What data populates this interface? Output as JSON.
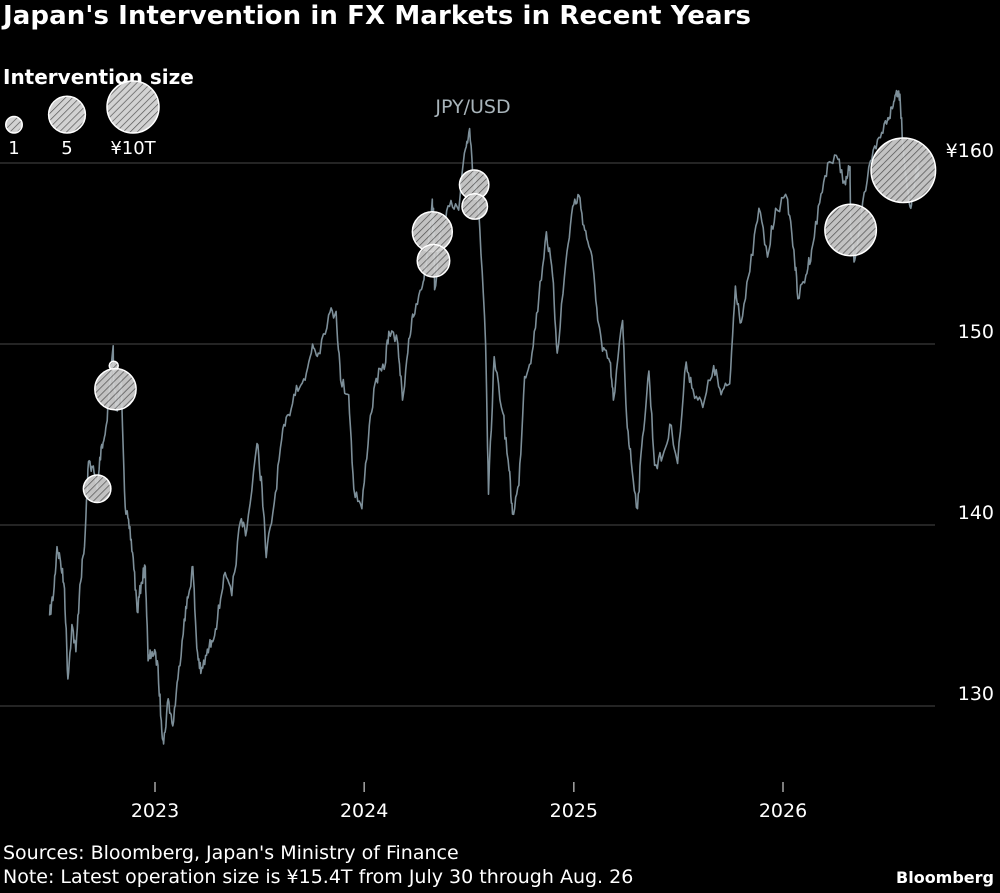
{
  "title": "Japan's Intervention in FX Markets in Recent Years",
  "legend": {
    "title": "Intervention size",
    "items": [
      {
        "label": "1",
        "size": 1
      },
      {
        "label": "5",
        "size": 5
      },
      {
        "label": "¥10T",
        "size": 10
      }
    ]
  },
  "colors": {
    "background": "#000000",
    "line": "#7d8f99",
    "bubble_fill": "#d9d9d9",
    "bubble_stroke": "#ffffff",
    "grid": "#3a3a3a",
    "text": "#ffffff"
  },
  "chart_data": {
    "type": "line",
    "series": [
      {
        "name": "JPY/USD",
        "points": [
          [
            "2022-07-01",
            135.0
          ],
          [
            "2022-07-08",
            136.2
          ],
          [
            "2022-07-14",
            138.8
          ],
          [
            "2022-07-20",
            138.0
          ],
          [
            "2022-07-27",
            136.5
          ],
          [
            "2022-08-02",
            131.5
          ],
          [
            "2022-08-09",
            134.5
          ],
          [
            "2022-08-16",
            133.0
          ],
          [
            "2022-08-23",
            136.7
          ],
          [
            "2022-08-31",
            138.8
          ],
          [
            "2022-09-07",
            143.5
          ],
          [
            "2022-09-14",
            143.2
          ],
          [
            "2022-09-22",
            142.0
          ],
          [
            "2022-09-29",
            144.3
          ],
          [
            "2022-10-06",
            145.0
          ],
          [
            "2022-10-13",
            147.2
          ],
          [
            "2022-10-20",
            149.9
          ],
          [
            "2022-10-21",
            147.6
          ],
          [
            "2022-10-27",
            146.3
          ],
          [
            "2022-11-03",
            148.1
          ],
          [
            "2022-11-10",
            141.0
          ],
          [
            "2022-11-17",
            139.8
          ],
          [
            "2022-11-24",
            138.2
          ],
          [
            "2022-12-01",
            135.2
          ],
          [
            "2022-12-08",
            136.8
          ],
          [
            "2022-12-15",
            137.7
          ],
          [
            "2022-12-20",
            132.5
          ],
          [
            "2022-12-27",
            133.0
          ],
          [
            "2023-01-05",
            132.5
          ],
          [
            "2023-01-12",
            129.2
          ],
          [
            "2023-01-16",
            127.9
          ],
          [
            "2023-01-24",
            130.4
          ],
          [
            "2023-02-01",
            128.9
          ],
          [
            "2023-02-10",
            131.5
          ],
          [
            "2023-02-21",
            134.8
          ],
          [
            "2023-03-01",
            136.2
          ],
          [
            "2023-03-08",
            137.7
          ],
          [
            "2023-03-15",
            133.2
          ],
          [
            "2023-03-22",
            131.8
          ],
          [
            "2023-04-01",
            132.8
          ],
          [
            "2023-04-10",
            133.6
          ],
          [
            "2023-04-20",
            134.8
          ],
          [
            "2023-05-01",
            137.2
          ],
          [
            "2023-05-15",
            136.1
          ],
          [
            "2023-05-30",
            140.2
          ],
          [
            "2023-06-10",
            139.7
          ],
          [
            "2023-06-28",
            144.5
          ],
          [
            "2023-07-07",
            142.0
          ],
          [
            "2023-07-14",
            138.2
          ],
          [
            "2023-07-28",
            141.2
          ],
          [
            "2023-08-10",
            144.7
          ],
          [
            "2023-08-22",
            146.1
          ],
          [
            "2023-09-05",
            147.7
          ],
          [
            "2023-09-20",
            148.0
          ],
          [
            "2023-10-03",
            150.0
          ],
          [
            "2023-10-13",
            149.5
          ],
          [
            "2023-10-31",
            151.6
          ],
          [
            "2023-11-13",
            151.8
          ],
          [
            "2023-11-21",
            148.0
          ],
          [
            "2023-12-05",
            147.2
          ],
          [
            "2023-12-14",
            142.0
          ],
          [
            "2023-12-28",
            140.9
          ],
          [
            "2024-01-10",
            145.5
          ],
          [
            "2024-01-22",
            148.1
          ],
          [
            "2024-02-05",
            148.6
          ],
          [
            "2024-02-13",
            150.7
          ],
          [
            "2024-02-29",
            150.0
          ],
          [
            "2024-03-08",
            146.9
          ],
          [
            "2024-03-19",
            150.3
          ],
          [
            "2024-03-27",
            151.5
          ],
          [
            "2024-04-10",
            153.0
          ],
          [
            "2024-04-19",
            154.6
          ],
          [
            "2024-04-29",
            158.0
          ],
          [
            "2024-04-30",
            156.0
          ],
          [
            "2024-05-01",
            157.5
          ],
          [
            "2024-05-03",
            153.0
          ],
          [
            "2024-05-14",
            156.4
          ],
          [
            "2024-05-29",
            157.6
          ],
          [
            "2024-06-14",
            157.4
          ],
          [
            "2024-06-26",
            160.8
          ],
          [
            "2024-07-03",
            161.9
          ],
          [
            "2024-07-11",
            158.8
          ],
          [
            "2024-07-12",
            159.3
          ],
          [
            "2024-07-19",
            157.4
          ],
          [
            "2024-07-31",
            150.0
          ],
          [
            "2024-08-05",
            141.7
          ],
          [
            "2024-08-15",
            149.3
          ],
          [
            "2024-08-30",
            146.2
          ],
          [
            "2024-09-10",
            143.0
          ],
          [
            "2024-09-16",
            140.6
          ],
          [
            "2024-09-27",
            142.2
          ],
          [
            "2024-10-07",
            148.2
          ],
          [
            "2024-10-20",
            149.5
          ],
          [
            "2024-11-01",
            152.6
          ],
          [
            "2024-11-14",
            156.2
          ],
          [
            "2024-11-25",
            153.7
          ],
          [
            "2024-12-03",
            149.5
          ],
          [
            "2024-12-18",
            154.5
          ],
          [
            "2024-12-30",
            157.6
          ],
          [
            "2025-01-10",
            158.2
          ],
          [
            "2025-01-20",
            156.3
          ],
          [
            "2025-01-31",
            155.1
          ],
          [
            "2025-02-10",
            152.0
          ],
          [
            "2025-02-20",
            149.6
          ],
          [
            "2025-03-05",
            149.0
          ],
          [
            "2025-03-11",
            146.9
          ],
          [
            "2025-03-27",
            151.3
          ],
          [
            "2025-04-03",
            146.0
          ],
          [
            "2025-04-11",
            143.5
          ],
          [
            "2025-04-22",
            140.9
          ],
          [
            "2025-05-01",
            144.9
          ],
          [
            "2025-05-12",
            148.5
          ],
          [
            "2025-05-22",
            143.3
          ],
          [
            "2025-06-05",
            143.8
          ],
          [
            "2025-06-20",
            145.5
          ],
          [
            "2025-07-01",
            143.4
          ],
          [
            "2025-07-16",
            149.0
          ],
          [
            "2025-07-28",
            147.5
          ],
          [
            "2025-08-14",
            146.5
          ],
          [
            "2025-09-02",
            148.8
          ],
          [
            "2025-09-15",
            147.2
          ],
          [
            "2025-09-30",
            147.8
          ],
          [
            "2025-10-10",
            153.2
          ],
          [
            "2025-10-20",
            151.2
          ],
          [
            "2025-11-04",
            154.0
          ],
          [
            "2025-11-20",
            157.5
          ],
          [
            "2025-12-05",
            154.8
          ],
          [
            "2025-12-19",
            157.5
          ],
          [
            "2026-01-09",
            158.0
          ],
          [
            "2026-01-20",
            155.2
          ],
          [
            "2026-01-27",
            152.5
          ],
          [
            "2026-02-10",
            153.8
          ],
          [
            "2026-02-20",
            155.2
          ],
          [
            "2026-03-06",
            157.8
          ],
          [
            "2026-03-20",
            160.0
          ],
          [
            "2026-04-07",
            160.2
          ],
          [
            "2026-04-20",
            158.8
          ],
          [
            "2026-04-28",
            159.8
          ],
          [
            "2026-04-29",
            156.1
          ],
          [
            "2026-05-06",
            154.6
          ],
          [
            "2026-05-20",
            157.8
          ],
          [
            "2026-06-05",
            160.2
          ],
          [
            "2026-06-20",
            161.4
          ],
          [
            "2026-07-03",
            162.5
          ],
          [
            "2026-07-11",
            163.0
          ],
          [
            "2026-07-18",
            164.0
          ],
          [
            "2026-07-24",
            163.8
          ],
          [
            "2026-07-30",
            160.8
          ],
          [
            "2026-08-05",
            158.8
          ],
          [
            "2026-08-12",
            157.5
          ],
          [
            "2026-08-20",
            159.2
          ],
          [
            "2026-08-26",
            159.7
          ]
        ]
      }
    ],
    "interventions": [
      {
        "date": "2022-09-22",
        "value": 142.0,
        "size": 2.8
      },
      {
        "date": "2022-10-21",
        "value": 148.8,
        "size": 0.3
      },
      {
        "date": "2022-10-24",
        "value": 147.5,
        "size": 6.3
      },
      {
        "date": "2024-04-29",
        "value": 156.2,
        "size": 5.9
      },
      {
        "date": "2024-05-01",
        "value": 154.6,
        "size": 3.9
      },
      {
        "date": "2024-07-11",
        "value": 158.8,
        "size": 3.2
      },
      {
        "date": "2024-07-12",
        "value": 157.6,
        "size": 2.4
      },
      {
        "date": "2026-04-29",
        "value": 156.3,
        "size": 9.8
      },
      {
        "date": "2026-07-30",
        "value": 159.6,
        "size": 15.4
      }
    ],
    "series_label": "JPY/USD",
    "x_ticks": [
      "2023",
      "2024",
      "2025",
      "2026"
    ],
    "y_ticks": [
      {
        "value": 130,
        "label": "130"
      },
      {
        "value": 140,
        "label": "140"
      },
      {
        "value": 150,
        "label": "150"
      },
      {
        "value": 160,
        "label": "¥160"
      }
    ],
    "xlim": [
      "2022-06-15",
      "2026-09-15"
    ],
    "ylim": [
      126,
      166
    ],
    "grid": true,
    "legend": "top-left"
  },
  "notes": {
    "sources": "Sources: Bloomberg, Japan's Ministry of Finance",
    "note": "Note: Latest operation size is ¥15.4T from July 30 through Aug. 26"
  },
  "brand": "Bloomberg"
}
